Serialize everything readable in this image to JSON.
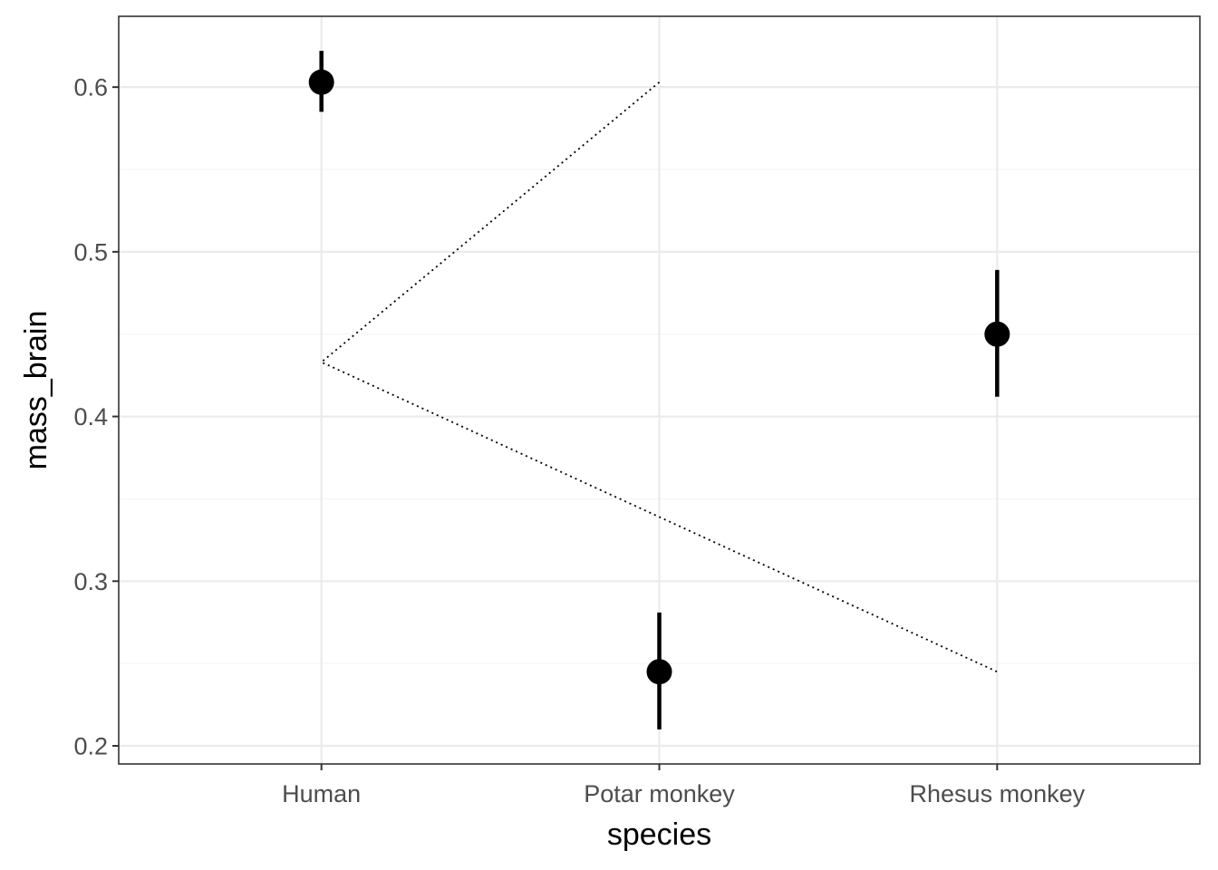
{
  "chart_data": {
    "type": "scatter",
    "title": "",
    "xlabel": "species",
    "ylabel": "mass_brain",
    "categories": [
      "Human",
      "Potar monkey",
      "Rhesus monkey"
    ],
    "ylim": [
      0.189,
      0.643
    ],
    "yticks": [
      0.2,
      0.3,
      0.4,
      0.5,
      0.6
    ],
    "ytick_labels": [
      "0.2",
      "0.3",
      "0.4",
      "0.5",
      "0.6"
    ],
    "grid": true,
    "legend": "none",
    "series": [
      {
        "kind": "pointrange",
        "points": [
          {
            "x": "Human",
            "y": 0.603,
            "ymin": 0.585,
            "ymax": 0.622
          },
          {
            "x": "Potar monkey",
            "y": 0.245,
            "ymin": 0.21,
            "ymax": 0.281
          },
          {
            "x": "Rhesus monkey",
            "y": 0.45,
            "ymin": 0.412,
            "ymax": 0.489
          }
        ]
      },
      {
        "kind": "dotted-line",
        "points": [
          {
            "x": "Potar monkey",
            "y": 0.603
          },
          {
            "x": "Human",
            "y": 0.433
          },
          {
            "x": "Rhesus monkey",
            "y": 0.245
          }
        ]
      }
    ],
    "colors": {
      "points": "#000000",
      "grid_major": "#ebebeb",
      "grid_minor": "#f5f5f5",
      "panel_border": "#333333",
      "tick_text": "#4d4d4d"
    }
  }
}
